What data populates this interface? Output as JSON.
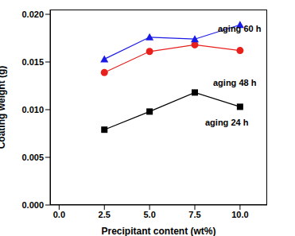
{
  "chart_data": {
    "type": "line",
    "x_label": "Precipitant content (wt%)",
    "y_label": "Coating weight (g)",
    "xlim": [
      -0.5,
      11.5
    ],
    "xticks": [
      {
        "value": 0,
        "label": "0.0"
      },
      2.5,
      {
        "value": 5,
        "label": "5.0"
      },
      7.5,
      {
        "value": 10,
        "label": "10.0"
      }
    ],
    "ylim": [
      0,
      0.0205
    ],
    "yticks": [
      {
        "value": 0,
        "label": "0.000"
      },
      {
        "value": 0.005,
        "label": "0.005"
      },
      {
        "value": 0.01,
        "label": "0.010"
      },
      {
        "value": 0.015,
        "label": "0.015"
      },
      {
        "value": 0.02,
        "label": "0.020"
      }
    ],
    "grid": false,
    "x": [
      2.5,
      5,
      7.5,
      10
    ],
    "series": [
      {
        "name": "aging 24 h",
        "color": "#000000",
        "marker": "square",
        "values": [
          0.0079,
          0.0098,
          0.0118,
          0.0103
        ]
      },
      {
        "name": "aging 48 h",
        "color": "#e8201c",
        "marker": "circle",
        "values": [
          0.0139,
          0.0161,
          0.0168,
          0.0162
        ]
      },
      {
        "name": "aging 60 h",
        "color": "#1a1ae6",
        "marker": "triangle",
        "values": [
          0.0153,
          0.0176,
          0.0174,
          0.0189
        ]
      }
    ]
  }
}
